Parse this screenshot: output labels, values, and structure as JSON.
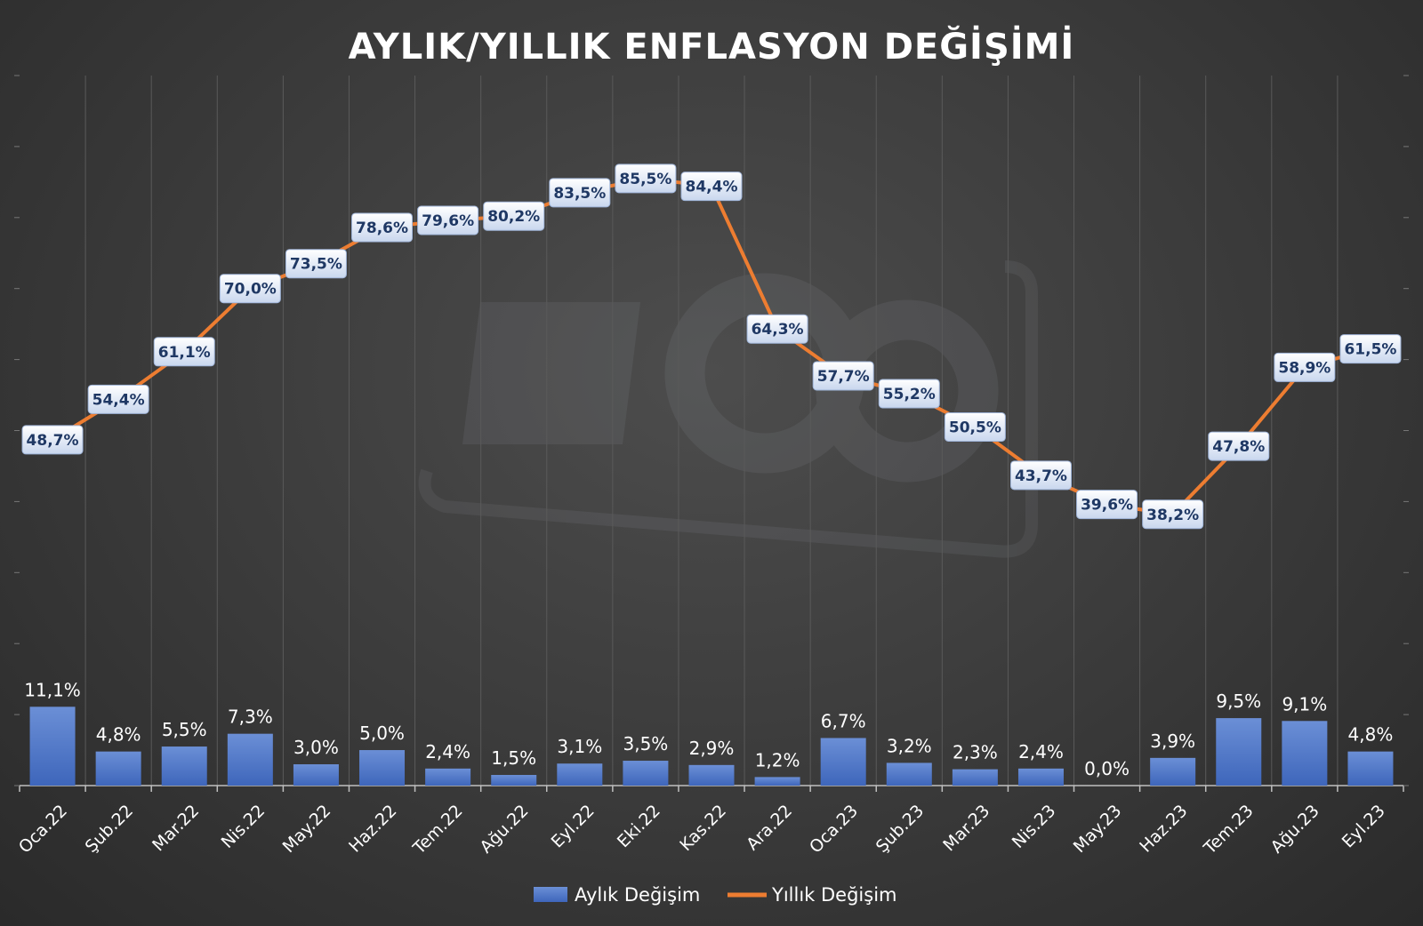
{
  "chart_data": {
    "type": "bar",
    "title": "AYLIK/YILLIK ENFLASYON DEĞİŞİMİ",
    "categories": [
      "Oca.22",
      "Şub.22",
      "Mar.22",
      "Nis.22",
      "May.22",
      "Haz.22",
      "Tem.22",
      "Ağu.22",
      "Eyl.22",
      "Eki.22",
      "Kas.22",
      "Ara.22",
      "Oca.23",
      "Şub.23",
      "Mar.23",
      "Nis.23",
      "May.23",
      "Haz.23",
      "Tem.23",
      "Ağu.23",
      "Eyl.23"
    ],
    "series": [
      {
        "name": "Aylık Değişim",
        "type": "bar",
        "color": "#4472c4",
        "values": [
          11.1,
          4.8,
          5.5,
          7.3,
          3.0,
          5.0,
          2.4,
          1.5,
          3.1,
          3.5,
          2.9,
          1.2,
          6.7,
          3.2,
          2.3,
          2.4,
          0.0,
          3.9,
          9.5,
          9.1,
          4.8
        ],
        "labels": [
          "11,1%",
          "4,8%",
          "5,5%",
          "7,3%",
          "3,0%",
          "5,0%",
          "2,4%",
          "1,5%",
          "3,1%",
          "3,5%",
          "2,9%",
          "1,2%",
          "6,7%",
          "3,2%",
          "2,3%",
          "2,4%",
          "0,0%",
          "3,9%",
          "9,5%",
          "9,1%",
          "4,8%"
        ]
      },
      {
        "name": "Yıllık Değişim",
        "type": "line",
        "color": "#ed7d31",
        "values": [
          48.7,
          54.4,
          61.1,
          70.0,
          73.5,
          78.6,
          79.6,
          80.2,
          83.5,
          85.5,
          84.4,
          64.3,
          57.7,
          55.2,
          50.5,
          43.7,
          39.6,
          38.2,
          47.8,
          58.9,
          61.5
        ],
        "labels": [
          "48,7%",
          "54,4%",
          "61,1%",
          "70,0%",
          "73,5%",
          "78,6%",
          "79,6%",
          "80,2%",
          "83,5%",
          "85,5%",
          "84,4%",
          "64,3%",
          "57,7%",
          "55,2%",
          "50,5%",
          "43,7%",
          "39,6%",
          "38,2%",
          "47,8%",
          "58,9%",
          "61,5%"
        ]
      }
    ],
    "left_axis_range": [
      0,
      100
    ],
    "right_axis_range": [
      0,
      100
    ],
    "grid": "vertical",
    "legend": "bottom",
    "label_text_color": "#1f3864",
    "label_box_color": "#dce6f2"
  }
}
